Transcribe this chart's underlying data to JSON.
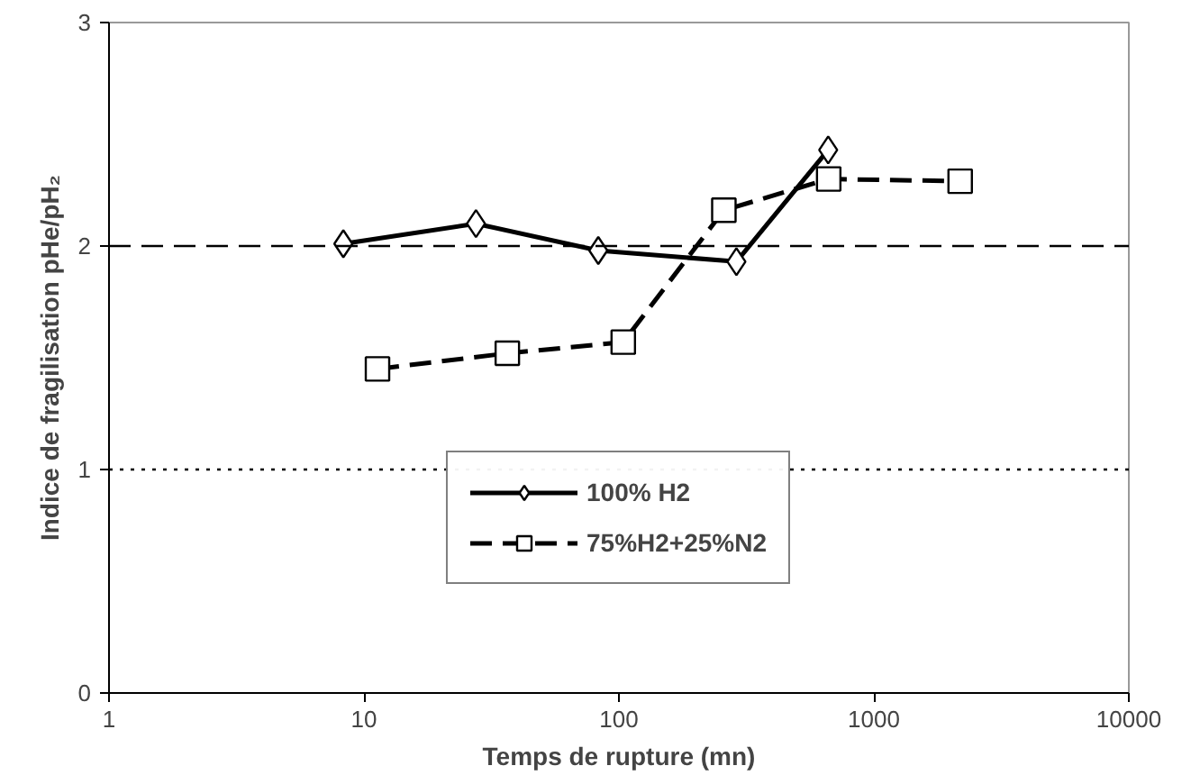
{
  "chart_data": {
    "type": "line",
    "xlabel": "Temps de rupture (mn)",
    "ylabel": "Indice de fragilisation pHe/pH₂",
    "log": "x",
    "xlim": [
      1,
      10000
    ],
    "xticks": [
      1,
      10,
      100,
      1000,
      10000
    ],
    "ylim": [
      0,
      3
    ],
    "yticks": [
      0,
      1,
      2,
      3
    ],
    "grid": false,
    "legend": "bottom",
    "series": [
      {
        "name": "100% H2",
        "color": "#000000",
        "marker": "diamond",
        "line_style": "solid",
        "x": [
          8.3,
          27.5,
          83,
          289,
          662
        ],
        "values": [
          2.01,
          2.1,
          1.98,
          1.93,
          2.43
        ]
      },
      {
        "name": "75%H2+25%N2",
        "color": "#000000",
        "marker": "square",
        "line_style": "dashed",
        "x": [
          11.3,
          36.5,
          104,
          258,
          665,
          2180
        ],
        "values": [
          1.45,
          1.52,
          1.57,
          2.16,
          2.3,
          2.29
        ]
      }
    ],
    "ref_lines": [
      {
        "axis": "y",
        "value": 2,
        "line_style": "dashed",
        "color": "#000000"
      },
      {
        "axis": "y",
        "value": 1,
        "line_style": "dotted",
        "color": "#000000"
      }
    ]
  }
}
